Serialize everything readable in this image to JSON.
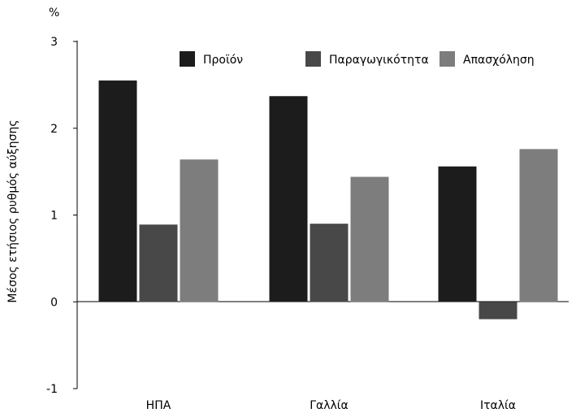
{
  "chart_data": {
    "type": "bar",
    "title": "",
    "unit_label": "%",
    "ylabel": "Μέσος ετήσιος ρυθμός αύξησης",
    "xlabel": "",
    "categories": [
      "ΗΠΑ",
      "Γαλλία",
      "Ιταλία"
    ],
    "series": [
      {
        "name": "Προϊόν",
        "values": [
          2.55,
          2.37,
          1.56
        ],
        "color": "#1c1c1c"
      },
      {
        "name": "Παραγωγικότητα",
        "values": [
          0.89,
          0.9,
          -0.2
        ],
        "color": "#484848"
      },
      {
        "name": "Απασχόληση",
        "values": [
          1.64,
          1.44,
          1.76
        ],
        "color": "#7d7d7d"
      }
    ],
    "ylim": [
      -1,
      3
    ],
    "yticks": [
      -1,
      0,
      1,
      2,
      3
    ],
    "grid": false,
    "legend": "top"
  }
}
